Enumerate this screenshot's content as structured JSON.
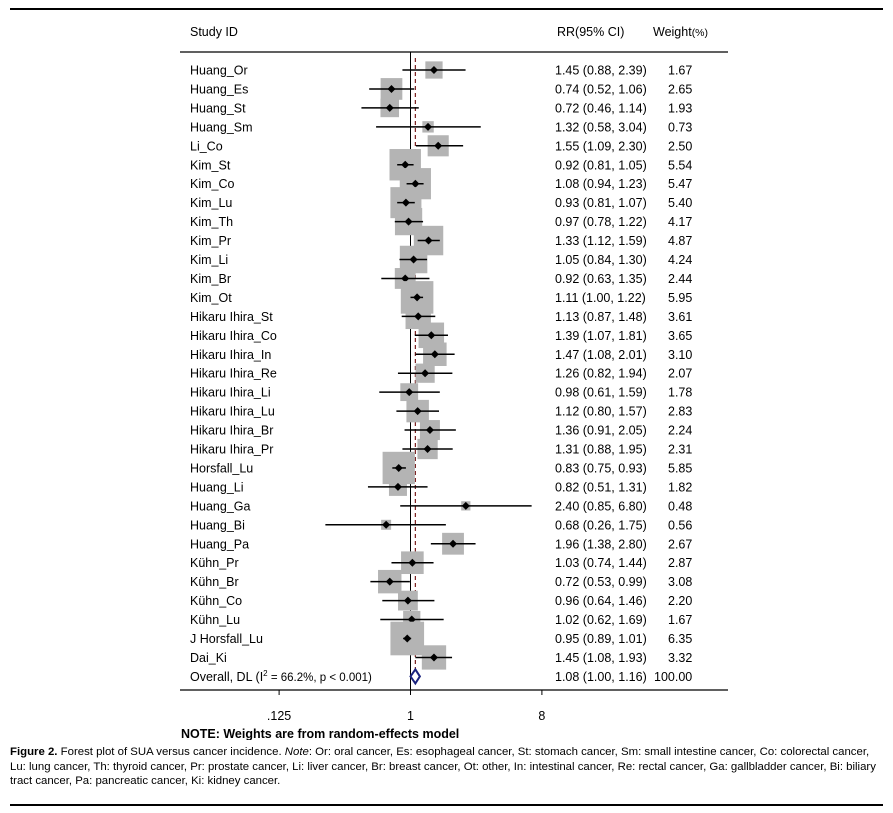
{
  "chart_data": {
    "type": "forest",
    "header": {
      "study": "Study ID",
      "ci": "RR(95% CI)",
      "weight": "Weight",
      "weight_unit": "(%)"
    },
    "studies": [
      {
        "label": "Huang_Or",
        "rr": 1.45,
        "lo": 0.88,
        "hi": 2.39,
        "ci": "1.45 (0.88, 2.39)",
        "weight": 1.67,
        "weight_text": "1.67"
      },
      {
        "label": "Huang_Es",
        "rr": 0.74,
        "lo": 0.52,
        "hi": 1.06,
        "ci": "0.74 (0.52, 1.06)",
        "weight": 2.65,
        "weight_text": "2.65"
      },
      {
        "label": "Huang_St",
        "rr": 0.72,
        "lo": 0.46,
        "hi": 1.14,
        "ci": "0.72 (0.46, 1.14)",
        "weight": 1.93,
        "weight_text": "1.93"
      },
      {
        "label": "Huang_Sm",
        "rr": 1.32,
        "lo": 0.58,
        "hi": 3.04,
        "ci": "1.32 (0.58, 3.04)",
        "weight": 0.73,
        "weight_text": "0.73"
      },
      {
        "label": "Li_Co",
        "rr": 1.55,
        "lo": 1.09,
        "hi": 2.3,
        "ci": "1.55 (1.09, 2.30)",
        "weight": 2.5,
        "weight_text": "2.50"
      },
      {
        "label": "Kim_St",
        "rr": 0.92,
        "lo": 0.81,
        "hi": 1.05,
        "ci": "0.92 (0.81, 1.05)",
        "weight": 5.54,
        "weight_text": "5.54"
      },
      {
        "label": "Kim_Co",
        "rr": 1.08,
        "lo": 0.94,
        "hi": 1.23,
        "ci": "1.08 (0.94, 1.23)",
        "weight": 5.47,
        "weight_text": "5.47"
      },
      {
        "label": "Kim_Lu",
        "rr": 0.93,
        "lo": 0.81,
        "hi": 1.07,
        "ci": "0.93 (0.81, 1.07)",
        "weight": 5.4,
        "weight_text": "5.40"
      },
      {
        "label": "Kim_Th",
        "rr": 0.97,
        "lo": 0.78,
        "hi": 1.22,
        "ci": "0.97 (0.78, 1.22)",
        "weight": 4.17,
        "weight_text": "4.17"
      },
      {
        "label": "Kim_Pr",
        "rr": 1.33,
        "lo": 1.12,
        "hi": 1.59,
        "ci": "1.33 (1.12, 1.59)",
        "weight": 4.87,
        "weight_text": "4.87"
      },
      {
        "label": "Kim_Li",
        "rr": 1.05,
        "lo": 0.84,
        "hi": 1.3,
        "ci": "1.05 (0.84, 1.30)",
        "weight": 4.24,
        "weight_text": "4.24"
      },
      {
        "label": "Kim_Br",
        "rr": 0.92,
        "lo": 0.63,
        "hi": 1.35,
        "ci": "0.92 (0.63, 1.35)",
        "weight": 2.44,
        "weight_text": "2.44"
      },
      {
        "label": "Kim_Ot",
        "rr": 1.11,
        "lo": 1.0,
        "hi": 1.22,
        "ci": "1.11 (1.00, 1.22)",
        "weight": 5.95,
        "weight_text": "5.95"
      },
      {
        "label": "Hikaru Ihira_St",
        "rr": 1.13,
        "lo": 0.87,
        "hi": 1.48,
        "ci": "1.13 (0.87, 1.48)",
        "weight": 3.61,
        "weight_text": "3.61"
      },
      {
        "label": "Hikaru Ihira_Co",
        "rr": 1.39,
        "lo": 1.07,
        "hi": 1.81,
        "ci": "1.39 (1.07, 1.81)",
        "weight": 3.65,
        "weight_text": "3.65"
      },
      {
        "label": "Hikaru Ihira_In",
        "rr": 1.47,
        "lo": 1.08,
        "hi": 2.01,
        "ci": "1.47 (1.08, 2.01)",
        "weight": 3.1,
        "weight_text": "3.10"
      },
      {
        "label": "Hikaru Ihira_Re",
        "rr": 1.26,
        "lo": 0.82,
        "hi": 1.94,
        "ci": "1.26 (0.82, 1.94)",
        "weight": 2.07,
        "weight_text": "2.07"
      },
      {
        "label": "Hikaru Ihira_Li",
        "rr": 0.98,
        "lo": 0.61,
        "hi": 1.59,
        "ci": "0.98 (0.61, 1.59)",
        "weight": 1.78,
        "weight_text": "1.78"
      },
      {
        "label": "Hikaru Ihira_Lu",
        "rr": 1.12,
        "lo": 0.8,
        "hi": 1.57,
        "ci": "1.12 (0.80, 1.57)",
        "weight": 2.83,
        "weight_text": "2.83"
      },
      {
        "label": "Hikaru Ihira_Br",
        "rr": 1.36,
        "lo": 0.91,
        "hi": 2.05,
        "ci": "1.36 (0.91, 2.05)",
        "weight": 2.24,
        "weight_text": "2.24"
      },
      {
        "label": "Hikaru Ihira_Pr",
        "rr": 1.31,
        "lo": 0.88,
        "hi": 1.95,
        "ci": "1.31 (0.88, 1.95)",
        "weight": 2.31,
        "weight_text": "2.31"
      },
      {
        "label": "Horsfall_Lu",
        "rr": 0.83,
        "lo": 0.75,
        "hi": 0.93,
        "ci": "0.83 (0.75, 0.93)",
        "weight": 5.85,
        "weight_text": "5.85"
      },
      {
        "label": "Huang_Li",
        "rr": 0.82,
        "lo": 0.51,
        "hi": 1.31,
        "ci": "0.82 (0.51, 1.31)",
        "weight": 1.82,
        "weight_text": "1.82"
      },
      {
        "label": "Huang_Ga",
        "rr": 2.4,
        "lo": 0.85,
        "hi": 6.8,
        "ci": "2.40 (0.85, 6.80)",
        "weight": 0.48,
        "weight_text": "0.48"
      },
      {
        "label": "Huang_Bi",
        "rr": 0.68,
        "lo": 0.26,
        "hi": 1.75,
        "ci": "0.68 (0.26, 1.75)",
        "weight": 0.56,
        "weight_text": "0.56"
      },
      {
        "label": "Huang_Pa",
        "rr": 1.96,
        "lo": 1.38,
        "hi": 2.8,
        "ci": "1.96 (1.38, 2.80)",
        "weight": 2.67,
        "weight_text": "2.67"
      },
      {
        "label": "Kühn_Pr",
        "rr": 1.03,
        "lo": 0.74,
        "hi": 1.44,
        "ci": "1.03 (0.74, 1.44)",
        "weight": 2.87,
        "weight_text": "2.87"
      },
      {
        "label": "Kühn_Br",
        "rr": 0.72,
        "lo": 0.53,
        "hi": 0.99,
        "ci": "0.72 (0.53, 0.99)",
        "weight": 3.08,
        "weight_text": "3.08"
      },
      {
        "label": "Kühn_Co",
        "rr": 0.96,
        "lo": 0.64,
        "hi": 1.46,
        "ci": "0.96 (0.64, 1.46)",
        "weight": 2.2,
        "weight_text": "2.20"
      },
      {
        "label": "Kühn_Lu",
        "rr": 1.02,
        "lo": 0.62,
        "hi": 1.69,
        "ci": "1.02 (0.62, 1.69)",
        "weight": 1.67,
        "weight_text": "1.67"
      },
      {
        "label": "J Horsfall_Lu",
        "rr": 0.95,
        "lo": 0.89,
        "hi": 1.01,
        "ci": "0.95 (0.89, 1.01)",
        "weight": 6.35,
        "weight_text": "6.35"
      },
      {
        "label": "Dai_Ki",
        "rr": 1.45,
        "lo": 1.08,
        "hi": 1.93,
        "ci": "1.45 (1.08, 1.93)",
        "weight": 3.32,
        "weight_text": "3.32"
      }
    ],
    "overall": {
      "label_pre": "Overall, DL (I",
      "label_sup": "2",
      "label_post": " = 66.2%, p < 0.001)",
      "rr": 1.08,
      "lo": 1.0,
      "hi": 1.16,
      "ci": "1.08 (1.00, 1.16)",
      "weight_text": "100.00"
    },
    "x_axis": {
      "scale": "log",
      "ticks": [
        0.125,
        1,
        8
      ],
      "tick_labels": [
        ".125",
        "1",
        "8"
      ],
      "null_line": 1
    },
    "note": "NOTE: Weights are from random-effects model",
    "colors": {
      "box": "#b4b4b4",
      "line": "#000000",
      "diamond": "#1a237e",
      "reference": "#7a1f1f"
    }
  },
  "caption": {
    "label": "Figure 2.",
    "lead": " Forest plot of SUA versus cancer incidence. ",
    "note_word": "Note",
    "body": ": Or: oral cancer, Es: esophageal cancer, St: stomach cancer, Sm: small intestine cancer, Co: colorectal cancer, Lu: lung cancer, Th: thyroid cancer, Pr: prostate cancer, Li: liver cancer, Br: breast cancer, Ot: other, In: intestinal cancer, Re: rectal cancer, Ga: gallbladder cancer, Bi: biliary tract cancer, Pa: pancreatic cancer, Ki: kidney cancer."
  }
}
